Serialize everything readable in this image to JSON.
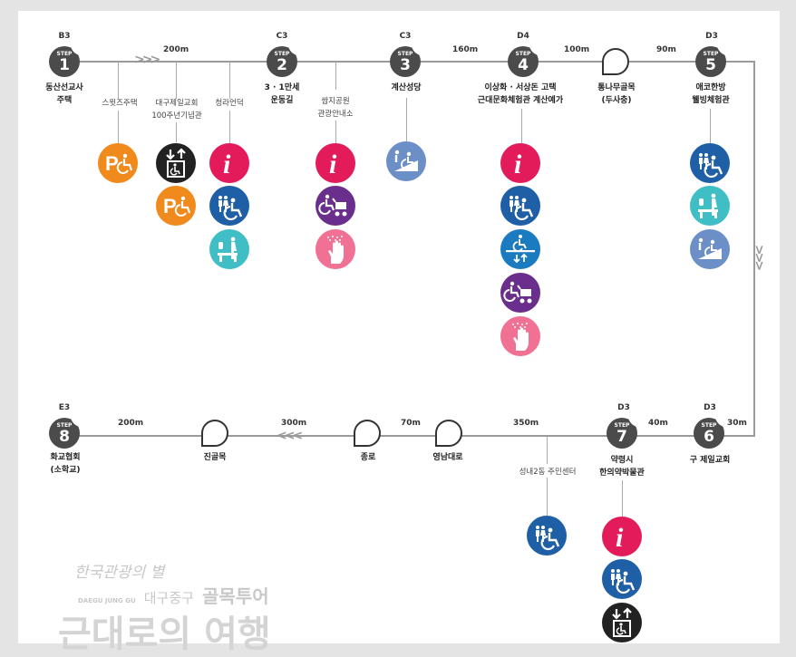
{
  "steps": [
    {
      "code": "B3",
      "label": "STEP",
      "num": "1",
      "name1": "동산선교사",
      "name2": "주택"
    },
    {
      "code": "C3",
      "label": "STEP",
      "num": "2",
      "name1": "3 · 1만세",
      "name2": "운동길"
    },
    {
      "code": "C3",
      "label": "STEP",
      "num": "3",
      "name1": "계산성당",
      "name2": ""
    },
    {
      "code": "D4",
      "label": "STEP",
      "num": "4",
      "name1": "이상화 · 서상돈 고택",
      "name2": "근대문화체험관 계산예가"
    },
    {
      "code": "D3",
      "label": "STEP",
      "num": "5",
      "name1": "애코한방",
      "name2": "웰빙체험관"
    },
    {
      "code": "D3",
      "label": "STEP",
      "num": "6",
      "name1": "구 제일교회",
      "name2": ""
    },
    {
      "code": "D3",
      "label": "STEP",
      "num": "7",
      "name1": "약령시",
      "name2": "한의약박물관"
    },
    {
      "code": "E3",
      "label": "STEP",
      "num": "8",
      "name1": "화교협회",
      "name2": "(소학교)"
    }
  ],
  "distances": {
    "d1": "200m",
    "d2": "160m",
    "d3": "100m",
    "d4": "90m",
    "d5": "30m",
    "d6": "40m",
    "d7": "350m",
    "d8": "70m",
    "d9": "300m",
    "d10": "200m"
  },
  "alleys": {
    "dusa1": "통나무골목",
    "dusa2": "(두사충)",
    "yeongnam": "영남대로",
    "jongro": "종로",
    "jingol": "진골목"
  },
  "subs": {
    "swits": "스윗즈주택",
    "jeil1": "대구제일교회",
    "jeil2": "100주년기념관",
    "cheongna": "청라언덕",
    "ssamji1": "쌈지공원",
    "ssamji2": "관광안내소",
    "seongnae": "성내2동 주민센터"
  },
  "branding": {
    "slogan": "한국관광의 별",
    "district_en": "DAEGU JUNG GU",
    "district_kr": "대구중구",
    "tour": "골목투어",
    "big": "근대로의 여행"
  },
  "icon_types": [
    "parking-disabled",
    "elevator",
    "info",
    "restroom-accessible",
    "baby-care",
    "stroller",
    "tactile",
    "ramp",
    "lift"
  ],
  "colors": {
    "parking": "#f08a1c",
    "info": "#e31b5a",
    "restroom": "#1f5fa6",
    "baby": "#3fbfc5",
    "stroller": "#6a2f8c",
    "tactile": "#f07193",
    "ramp": "#6d8fc8",
    "lift": "#1a7bc0",
    "elevator": "#222222",
    "step": "#4b4b4b"
  }
}
